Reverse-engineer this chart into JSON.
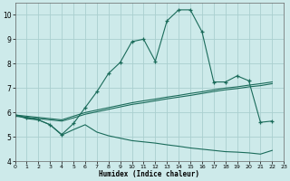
{
  "xlabel": "Humidex (Indice chaleur)",
  "bg_color": "#cdeaea",
  "grid_color": "#aacfcf",
  "line_color": "#1a6b5a",
  "xlim": [
    0,
    23
  ],
  "ylim": [
    4,
    10.5
  ],
  "yticks": [
    4,
    5,
    6,
    7,
    8,
    9,
    10
  ],
  "xticks": [
    0,
    1,
    2,
    3,
    4,
    5,
    6,
    7,
    8,
    9,
    10,
    11,
    12,
    13,
    14,
    15,
    16,
    17,
    18,
    19,
    20,
    21,
    22,
    23
  ],
  "upper_x": [
    0,
    1,
    2,
    3,
    4,
    5,
    6,
    7,
    8,
    9,
    10,
    11,
    12,
    13,
    14,
    15,
    16,
    17,
    18,
    19,
    20,
    21,
    22
  ],
  "upper_y": [
    5.9,
    5.8,
    5.7,
    5.5,
    5.1,
    5.55,
    6.2,
    6.85,
    7.6,
    8.05,
    8.9,
    9.0,
    8.1,
    9.75,
    10.2,
    10.2,
    9.3,
    7.25,
    7.25,
    7.5,
    7.3,
    5.6,
    5.65
  ],
  "mid_x": [
    0,
    1,
    2,
    3,
    4,
    5,
    6,
    7,
    8,
    9,
    10,
    11,
    12,
    13,
    14,
    15,
    16,
    17,
    18,
    19,
    20,
    21,
    22
  ],
  "mid_y": [
    5.9,
    5.85,
    5.8,
    5.75,
    5.7,
    5.85,
    6.0,
    6.1,
    6.2,
    6.3,
    6.4,
    6.48,
    6.55,
    6.63,
    6.7,
    6.78,
    6.85,
    6.93,
    7.0,
    7.05,
    7.12,
    7.18,
    7.25
  ],
  "mid2_x": [
    0,
    1,
    2,
    3,
    4,
    5,
    6,
    7,
    8,
    9,
    10,
    11,
    12,
    13,
    14,
    15,
    16,
    17,
    18,
    19,
    20,
    21,
    22
  ],
  "mid2_y": [
    5.85,
    5.8,
    5.75,
    5.7,
    5.65,
    5.78,
    5.93,
    6.03,
    6.13,
    6.23,
    6.33,
    6.4,
    6.48,
    6.56,
    6.63,
    6.7,
    6.78,
    6.86,
    6.93,
    6.98,
    7.05,
    7.1,
    7.18
  ],
  "lower_x": [
    0,
    1,
    2,
    3,
    4,
    5,
    6,
    7,
    8,
    9,
    10,
    11,
    12,
    13,
    14,
    15,
    16,
    17,
    18,
    19,
    20,
    21,
    22
  ],
  "lower_y": [
    5.9,
    5.75,
    5.7,
    5.5,
    5.08,
    5.3,
    5.5,
    5.2,
    5.05,
    4.95,
    4.85,
    4.8,
    4.75,
    4.68,
    4.62,
    4.55,
    4.5,
    4.45,
    4.4,
    4.38,
    4.35,
    4.3,
    4.45
  ]
}
